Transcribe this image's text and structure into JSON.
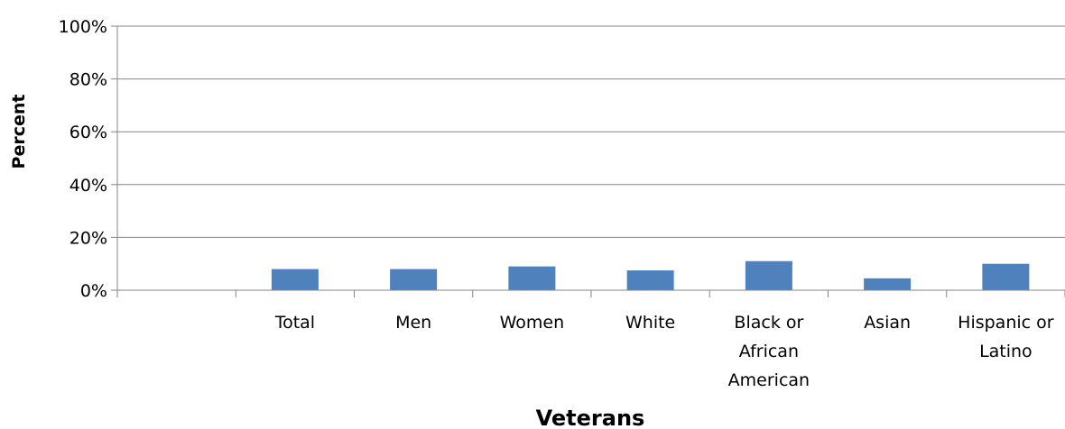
{
  "chart_data": {
    "type": "bar",
    "categories": [
      "",
      "Total",
      "Men",
      "Women",
      "White",
      "Black or African American",
      "Asian",
      "Hispanic or Latino"
    ],
    "category_lines": [
      [],
      [
        "Total"
      ],
      [
        "Men"
      ],
      [
        "Women"
      ],
      [
        "White"
      ],
      [
        "Black or",
        "African",
        "American"
      ],
      [
        "Asian"
      ],
      [
        "Hispanic or",
        "Latino"
      ]
    ],
    "values": [
      null,
      8,
      8,
      9,
      7.5,
      11,
      4.5,
      10
    ],
    "y_ticks": [
      0,
      20,
      40,
      60,
      80,
      100
    ],
    "y_tick_labels": [
      "0%",
      "20%",
      "40%",
      "60%",
      "80%",
      "100%"
    ],
    "ylim": [
      0,
      100
    ],
    "xlabel": "Veterans",
    "ylabel": "Percent",
    "grid": true,
    "legend": "none",
    "bar_color": "#4f81bd",
    "grid_color": "#868686"
  }
}
